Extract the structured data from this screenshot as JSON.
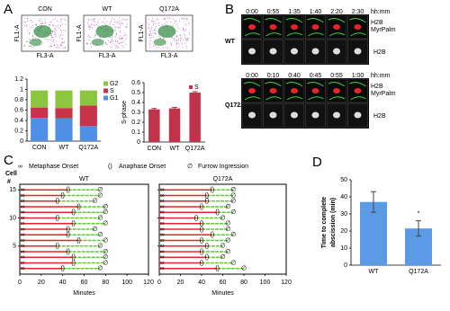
{
  "panel_labels": [
    "A",
    "B",
    "C",
    "D"
  ],
  "images": {
    "flow": {
      "labels": [
        "CON",
        "WT",
        "Q172A"
      ],
      "x_label": "FL3-A",
      "y_label": "FL1-A"
    },
    "timelapse": {
      "unit": "hh:mm",
      "channels": [
        "H2B",
        "MyrPalm",
        "H2B"
      ],
      "rows": [
        {
          "label": "WT",
          "times": [
            "0:00",
            "0:55",
            "1:35",
            "1:40",
            "2:20",
            "2:30"
          ]
        },
        {
          "label": "Q172A",
          "times": [
            "0:00",
            "0:10",
            "0:40",
            "0:45",
            "0:55",
            "1:00"
          ]
        }
      ]
    }
  },
  "chart_data": [
    {
      "type": "stacked_bar",
      "categories": [
        "CON",
        "WT",
        "Q172A"
      ],
      "series": [
        {
          "name": "G1",
          "color": "#4f8fe6",
          "values": [
            0.45,
            0.44,
            0.29
          ]
        },
        {
          "name": "S",
          "color": "#c9334a",
          "values": [
            0.2,
            0.2,
            0.4
          ]
        },
        {
          "name": "G2",
          "color": "#8cc63f",
          "values": [
            0.33,
            0.34,
            0.29
          ]
        }
      ],
      "ylim": [
        0,
        1.2
      ],
      "yticks": [
        0,
        0.2,
        0.4,
        0.6,
        0.8,
        1,
        1.2
      ]
    },
    {
      "type": "bar",
      "categories": [
        "CON",
        "WT",
        "Q172A"
      ],
      "ylabel": "S-phase",
      "series": [
        {
          "name": "S",
          "color": "#c0334a",
          "values": [
            0.33,
            0.34,
            0.5
          ],
          "errors": [
            0.01,
            0.01,
            0.01
          ]
        }
      ],
      "ylim": [
        0,
        0.6
      ],
      "yticks": [
        0,
        0.1,
        0.2,
        0.3,
        0.4,
        0.5,
        0.6
      ]
    },
    {
      "type": "timeline",
      "xlabel": "Minutes",
      "ylabel": [
        "Cell",
        "#"
      ],
      "series": [
        {
          "name": "Metaphase Onset",
          "marker": "∞",
          "color": "#e8242a"
        },
        {
          "name": "Anaphase Onset",
          "marker": "()",
          "color": "#5ccc2e"
        },
        {
          "name": "Furrow Ingression",
          "marker": "∅",
          "color": "#8b3fc9"
        }
      ],
      "panels": [
        {
          "title": "WT",
          "values": [
            [
              0,
              0,
              0,
              0,
              0,
              0,
              0,
              0,
              0,
              0,
              0,
              0,
              0,
              0,
              0
            ],
            [
              40,
              50,
              50,
              45,
              35,
              55,
              45,
              45,
              50,
              35,
              50,
              55,
              35,
              40,
              45
            ],
            [
              75,
              80,
              80,
              80,
              75,
              80,
              75,
              70,
              80,
              75,
              80,
              80,
              70,
              75,
              75
            ]
          ]
        },
        {
          "title": "Q172A",
          "values": [
            [
              0,
              0,
              0,
              0,
              0,
              0,
              0,
              0,
              0,
              0,
              0,
              0,
              0,
              0,
              0
            ],
            [
              55,
              40,
              45,
              40,
              45,
              40,
              50,
              40,
              40,
              35,
              55,
              40,
              45,
              45,
              50
            ],
            [
              80,
              70,
              60,
              65,
              60,
              65,
              70,
              65,
              65,
              60,
              70,
              65,
              70,
              70,
              70
            ]
          ]
        }
      ],
      "xlim": [
        0,
        120
      ],
      "xticks": [
        0,
        20,
        40,
        60,
        80,
        100,
        120
      ],
      "ylim": [
        0,
        16
      ],
      "yticks": [
        5,
        10,
        15
      ]
    },
    {
      "type": "bar",
      "categories": [
        "WT",
        "Q172A"
      ],
      "ylabel": [
        "Time to complete",
        "abscission (min)"
      ],
      "annotation": "*",
      "series": [
        {
          "color": "#5b9be6",
          "values": [
            37,
            21.5
          ],
          "errors": [
            6,
            4.5
          ]
        }
      ],
      "ylim": [
        0,
        50
      ],
      "yticks": [
        0,
        10,
        20,
        30,
        40,
        50
      ]
    }
  ]
}
